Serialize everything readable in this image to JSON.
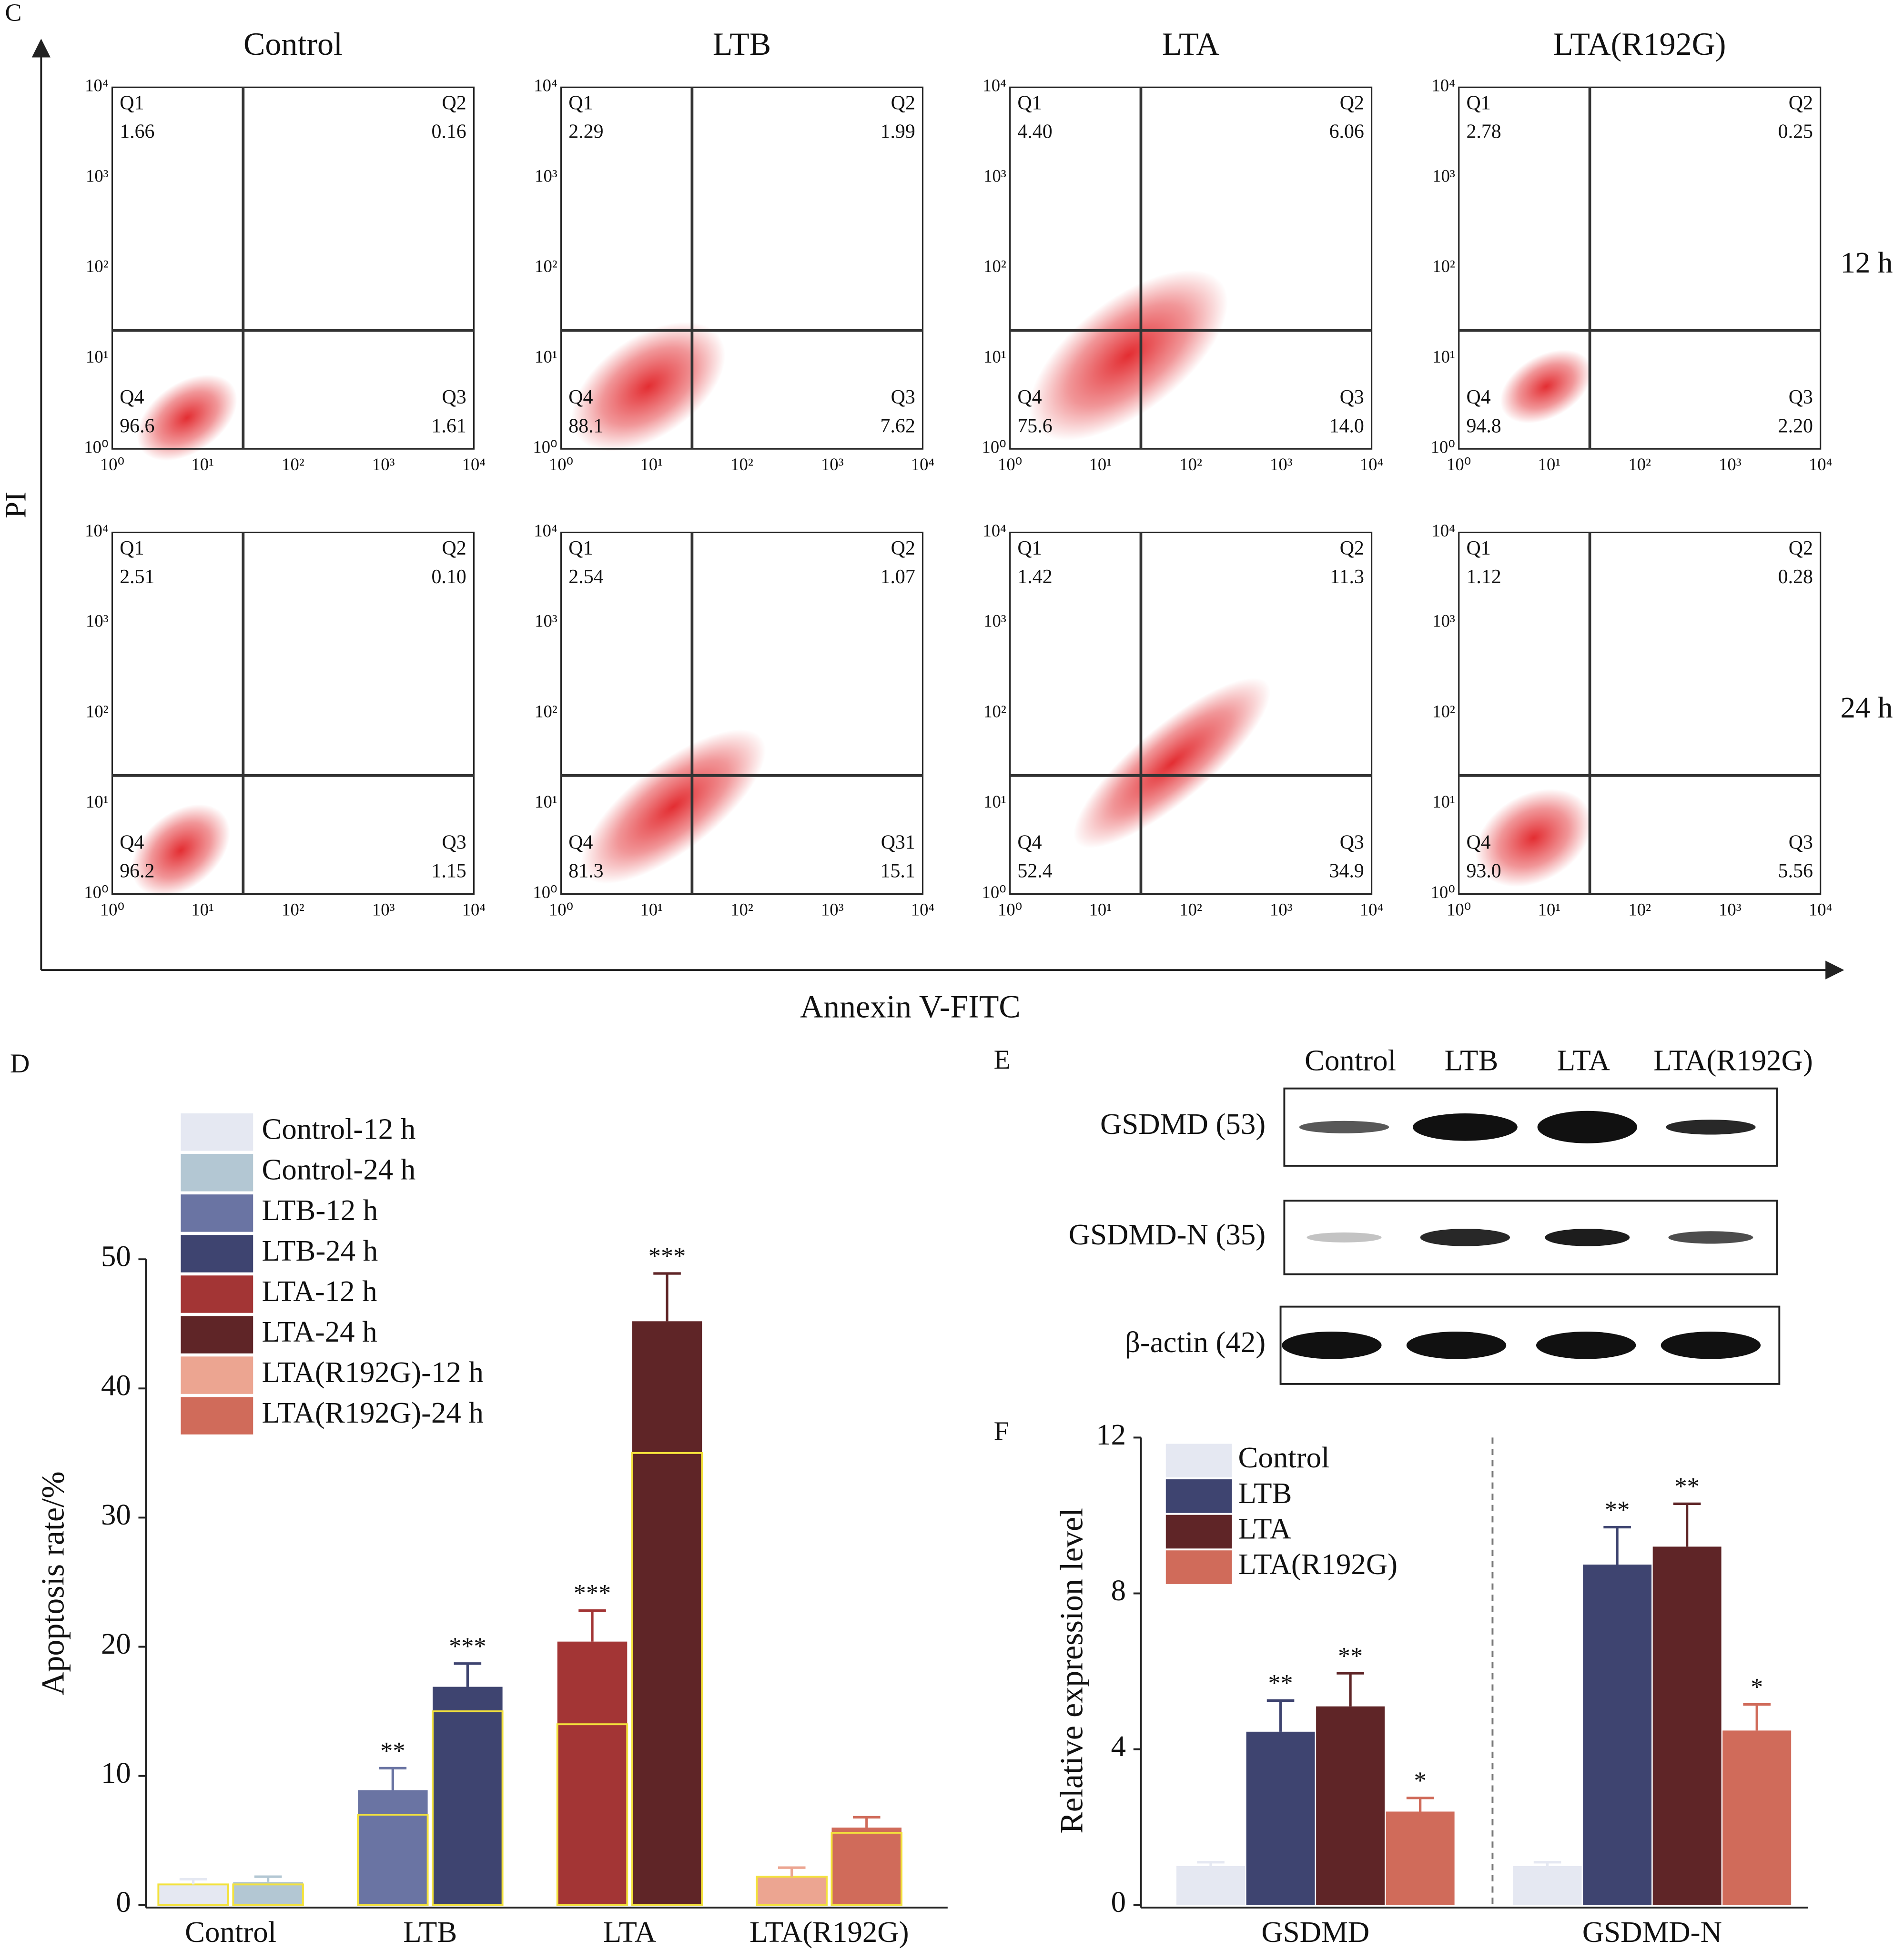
{
  "panel_c": {
    "label": "C",
    "columns": [
      "Control",
      "LTB",
      "LTA",
      "LTA(R192G)"
    ],
    "rows": [
      "12 h",
      "24 h"
    ],
    "tick_labels": [
      "10⁰",
      "10¹",
      "10²",
      "10³",
      "10⁴"
    ],
    "y_axis_label": "PI",
    "x_axis_label": "Annexin V-FITC",
    "plots": [
      [
        {
          "quadrants": [
            {
              "name": "Q1",
              "value": "1.66"
            },
            {
              "name": "Q2",
              "value": "0.16"
            },
            {
              "name": "Q3",
              "value": "1.61"
            },
            {
              "name": "Q4",
              "value": "96.6"
            }
          ]
        },
        {
          "quadrants": [
            {
              "name": "Q1",
              "value": "2.29"
            },
            {
              "name": "Q2",
              "value": "1.99"
            },
            {
              "name": "Q3",
              "value": "7.62"
            },
            {
              "name": "Q4",
              "value": "88.1"
            }
          ]
        },
        {
          "quadrants": [
            {
              "name": "Q1",
              "value": "4.40"
            },
            {
              "name": "Q2",
              "value": "6.06"
            },
            {
              "name": "Q3",
              "value": "14.0"
            },
            {
              "name": "Q4",
              "value": "75.6"
            }
          ]
        },
        {
          "quadrants": [
            {
              "name": "Q1",
              "value": "2.78"
            },
            {
              "name": "Q2",
              "value": "0.25"
            },
            {
              "name": "Q3",
              "value": "2.20"
            },
            {
              "name": "Q4",
              "value": "94.8"
            }
          ]
        }
      ],
      [
        {
          "quadrants": [
            {
              "name": "Q1",
              "value": "2.51"
            },
            {
              "name": "Q2",
              "value": "0.10"
            },
            {
              "name": "Q3",
              "value": "1.15"
            },
            {
              "name": "Q4",
              "value": "96.2"
            }
          ]
        },
        {
          "quadrants": [
            {
              "name": "Q1",
              "value": "2.54"
            },
            {
              "name": "Q2",
              "value": "1.07"
            },
            {
              "name": "Q31",
              "value": "15.1"
            },
            {
              "name": "Q4",
              "value": "81.3"
            }
          ]
        },
        {
          "quadrants": [
            {
              "name": "Q1",
              "value": "1.42"
            },
            {
              "name": "Q2",
              "value": "11.3"
            },
            {
              "name": "Q3",
              "value": "34.9"
            },
            {
              "name": "Q4",
              "value": "52.4"
            }
          ]
        },
        {
          "quadrants": [
            {
              "name": "Q1",
              "value": "1.12"
            },
            {
              "name": "Q2",
              "value": "0.28"
            },
            {
              "name": "Q3",
              "value": "5.56"
            },
            {
              "name": "Q4",
              "value": "93.0"
            }
          ]
        }
      ]
    ]
  },
  "panel_e": {
    "label": "E",
    "columns": [
      "Control",
      "LTB",
      "LTA",
      "LTA(R192G)"
    ],
    "rows": [
      "GSDMD (53)",
      "GSDMD-N (35)",
      "β-actin (42)"
    ]
  },
  "chart_data": [
    {
      "type": "bar",
      "label": "D",
      "y_axis_label": "Apoptosis rate/%",
      "categories": [
        "Control",
        "LTB",
        "LTA",
        "LTA(R192G)"
      ],
      "ylim": [
        0,
        50
      ],
      "yticks": [
        0,
        10,
        20,
        30,
        40,
        50
      ],
      "series": [
        {
          "name": "Control-12 h",
          "color": "#e5e8f2",
          "values": [
            1.6,
            null,
            null,
            null
          ],
          "errors": [
            0.4,
            null,
            null,
            null
          ],
          "outlined_values": [
            1.6,
            null,
            null,
            null
          ],
          "significance": [
            null,
            null,
            null,
            null
          ]
        },
        {
          "name": "Control-24 h",
          "color": "#b3c7d3",
          "values": [
            1.8,
            null,
            null,
            null
          ],
          "errors": [
            0.4,
            null,
            null,
            null
          ],
          "outlined_values": [
            1.6,
            null,
            null,
            null
          ],
          "significance": [
            null,
            null,
            null,
            null
          ]
        },
        {
          "name": "LTB-12 h",
          "color": "#6a74a3",
          "values": [
            null,
            8.9,
            null,
            null
          ],
          "errors": [
            null,
            1.7,
            null,
            null
          ],
          "outlined_values": [
            null,
            7.0,
            null,
            null
          ],
          "significance": [
            null,
            "**",
            null,
            null
          ]
        },
        {
          "name": "LTB-24 h",
          "color": "#3e4470",
          "values": [
            null,
            16.9,
            null,
            null
          ],
          "errors": [
            null,
            1.8,
            null,
            null
          ],
          "outlined_values": [
            null,
            15.0,
            null,
            null
          ],
          "significance": [
            null,
            "***",
            null,
            null
          ]
        },
        {
          "name": "LTA-12 h",
          "color": "#a33535",
          "values": [
            null,
            null,
            20.4,
            null
          ],
          "errors": [
            null,
            null,
            2.4,
            null
          ],
          "outlined_values": [
            null,
            null,
            14.0,
            null
          ],
          "significance": [
            null,
            null,
            "***",
            null
          ]
        },
        {
          "name": "LTA-24 h",
          "color": "#5f2527",
          "values": [
            null,
            null,
            45.2,
            null
          ],
          "errors": [
            null,
            null,
            3.7,
            null
          ],
          "outlined_values": [
            null,
            null,
            35.0,
            null
          ],
          "significance": [
            null,
            null,
            "***",
            null
          ]
        },
        {
          "name": "LTA(R192G)-12 h",
          "color": "#eca591",
          "values": [
            null,
            null,
            null,
            2.2
          ],
          "errors": [
            null,
            null,
            null,
            0.7
          ],
          "outlined_values": [
            null,
            null,
            null,
            2.2
          ],
          "significance": [
            null,
            null,
            null,
            null
          ]
        },
        {
          "name": "LTA(R192G)-24 h",
          "color": "#d06b5a",
          "values": [
            null,
            null,
            null,
            6.0
          ],
          "errors": [
            null,
            null,
            null,
            0.8
          ],
          "outlined_values": [
            null,
            null,
            null,
            5.6
          ],
          "significance": [
            null,
            null,
            null,
            null
          ]
        }
      ]
    },
    {
      "type": "bar",
      "label": "F",
      "y_axis_label": "Relative expression level",
      "categories": [
        "GSDMD",
        "GSDMD-N"
      ],
      "ylim": [
        0,
        12
      ],
      "yticks": [
        0,
        4,
        8,
        12
      ],
      "series": [
        {
          "name": "Control",
          "color": "#e5e8f2",
          "values": [
            1.0,
            1.0
          ],
          "errors": [
            0.1,
            0.1
          ],
          "significance": [
            null,
            null
          ]
        },
        {
          "name": "LTB",
          "color": "#3e4470",
          "values": [
            4.45,
            8.74
          ],
          "errors": [
            0.8,
            0.96
          ],
          "significance": [
            "**",
            "**"
          ]
        },
        {
          "name": "LTA",
          "color": "#5f2527",
          "values": [
            5.1,
            9.2
          ],
          "errors": [
            0.85,
            1.1
          ],
          "significance": [
            "**",
            "**"
          ]
        },
        {
          "name": "LTA(R192G)",
          "color": "#d06b5a",
          "values": [
            2.4,
            4.48
          ],
          "errors": [
            0.35,
            0.67
          ],
          "significance": [
            "*",
            "*"
          ]
        }
      ]
    }
  ]
}
